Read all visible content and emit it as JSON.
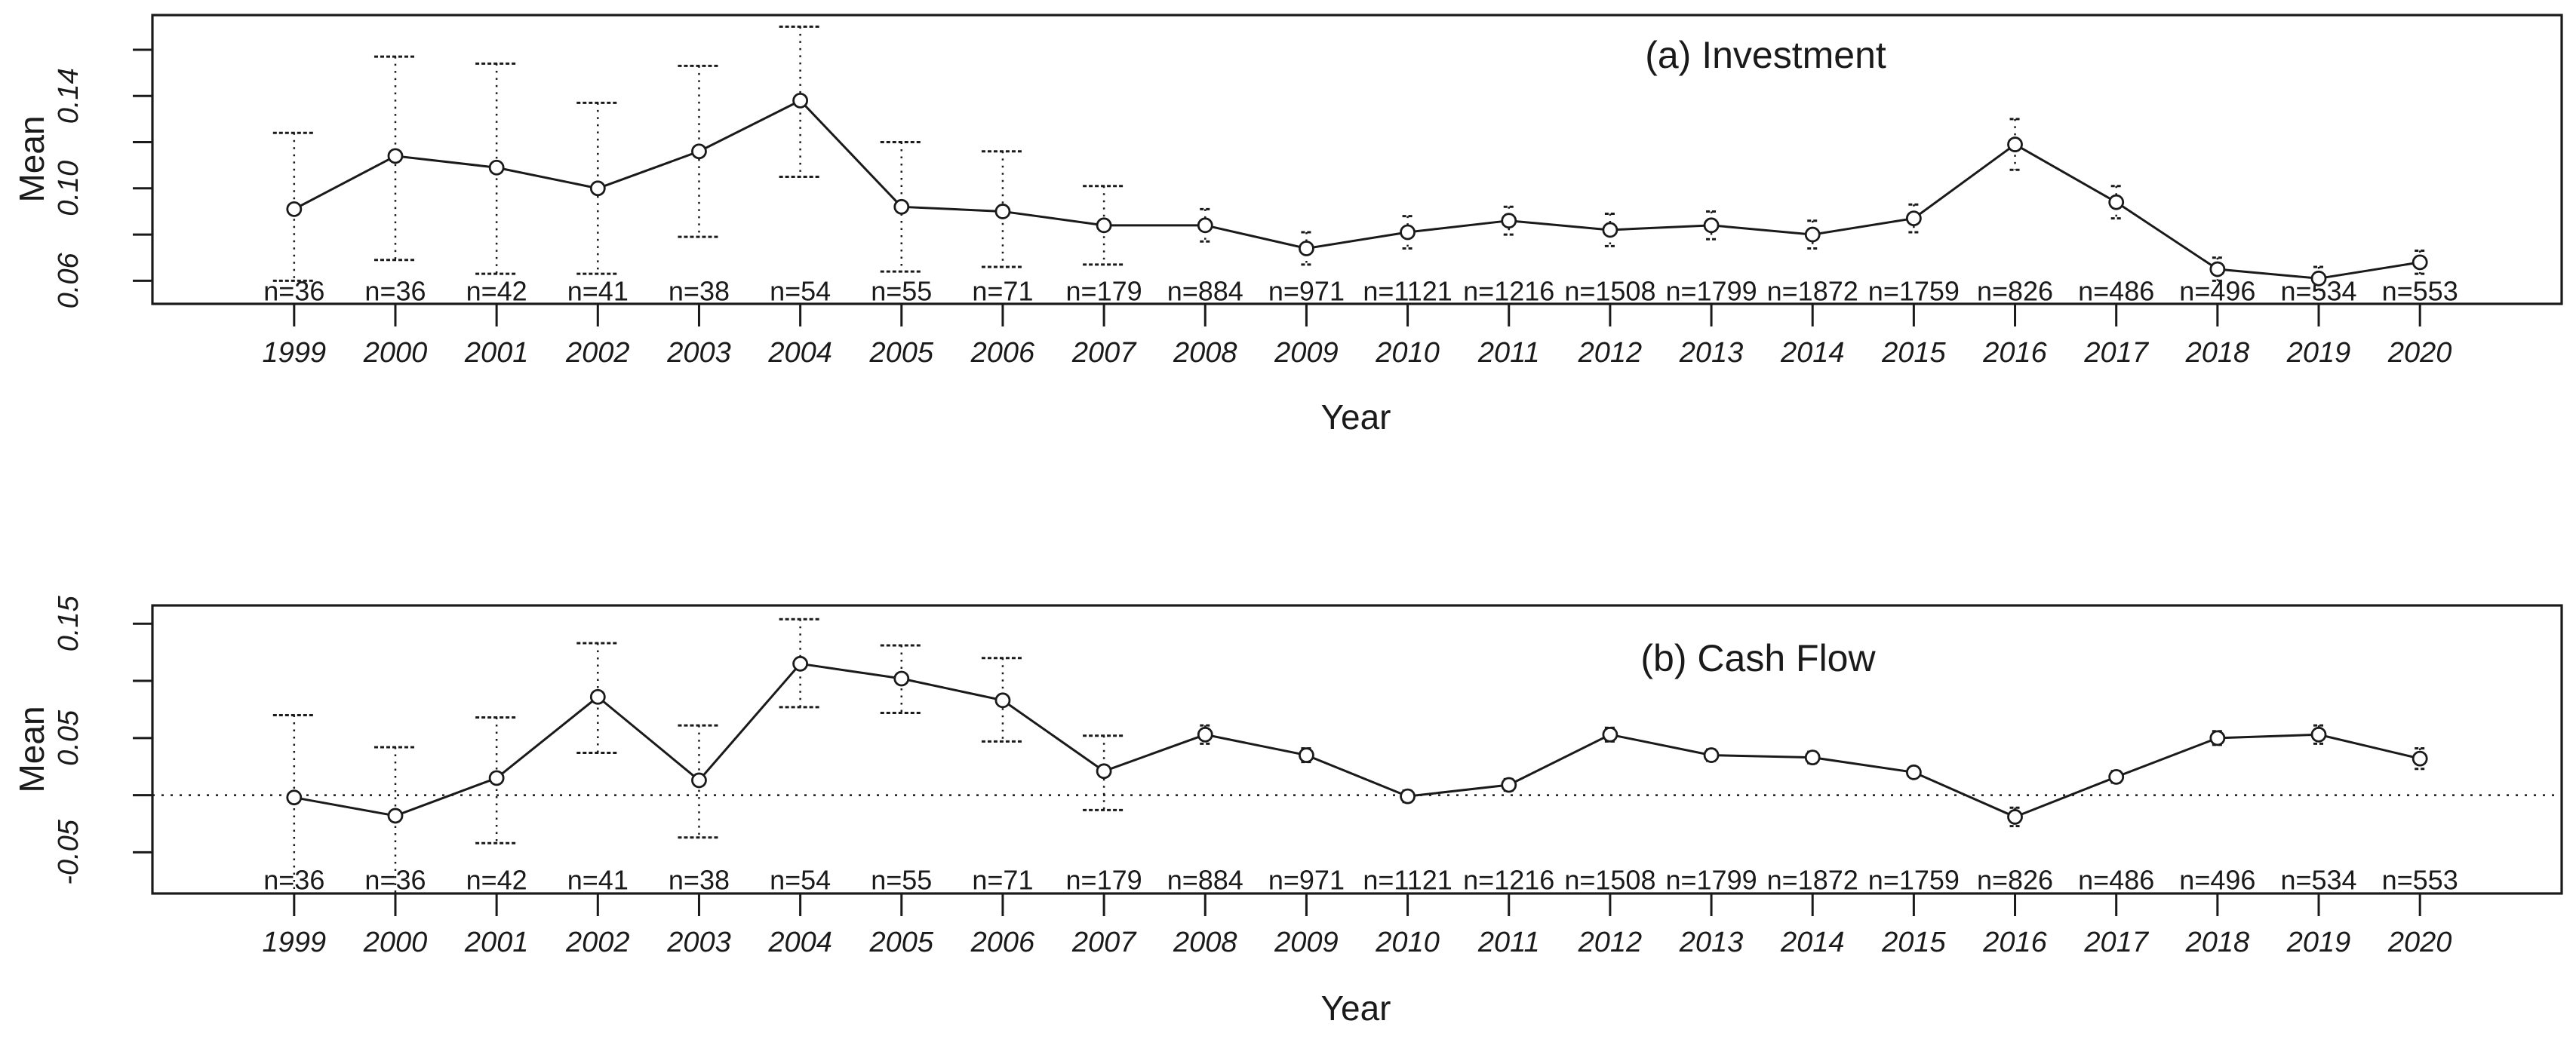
{
  "colors": {
    "ink": "#1a1a1a",
    "background": "#ffffff"
  },
  "chart_data": [
    {
      "id": "investment",
      "type": "line",
      "title": "(a) Investment",
      "ylabel": "Mean",
      "xlabel": "Year",
      "legend": "none",
      "grid": false,
      "xlim": [
        1997.6,
        2021.4
      ],
      "ylim": [
        0.05,
        0.175
      ],
      "years": [
        1999,
        2000,
        2001,
        2002,
        2003,
        2004,
        2005,
        2006,
        2007,
        2008,
        2009,
        2010,
        2011,
        2012,
        2013,
        2014,
        2015,
        2016,
        2017,
        2018,
        2019,
        2020
      ],
      "n_labels": [
        "n=36",
        "n=36",
        "n=42",
        "n=41",
        "n=38",
        "n=54",
        "n=55",
        "n=71",
        "n=179",
        "n=884",
        "n=971",
        "n=1121",
        "n=1216",
        "n=1508",
        "n=1799",
        "n=1872",
        "n=1759",
        "n=826",
        "n=486",
        "n=496",
        "n=534",
        "n=553"
      ],
      "mean": [
        0.091,
        0.114,
        0.109,
        0.1,
        0.116,
        0.138,
        0.092,
        0.09,
        0.084,
        0.084,
        0.074,
        0.081,
        0.086,
        0.082,
        0.084,
        0.08,
        0.087,
        0.119,
        0.094,
        0.065,
        0.061,
        0.068
      ],
      "err_lo": [
        0.06,
        0.069,
        0.063,
        0.063,
        0.079,
        0.105,
        0.064,
        0.066,
        0.067,
        0.077,
        0.067,
        0.074,
        0.08,
        0.075,
        0.078,
        0.074,
        0.081,
        0.108,
        0.087,
        0.06,
        0.056,
        0.063
      ],
      "err_hi": [
        0.124,
        0.157,
        0.154,
        0.137,
        0.153,
        0.17,
        0.12,
        0.116,
        0.101,
        0.091,
        0.081,
        0.088,
        0.092,
        0.089,
        0.09,
        0.086,
        0.093,
        0.13,
        0.101,
        0.07,
        0.066,
        0.073
      ],
      "yticks": [
        {
          "v": 0.06,
          "label": "0.06"
        },
        {
          "v": 0.08,
          "label": ""
        },
        {
          "v": 0.1,
          "label": "0.10"
        },
        {
          "v": 0.12,
          "label": ""
        },
        {
          "v": 0.14,
          "label": "0.14"
        },
        {
          "v": 0.16,
          "label": ""
        }
      ],
      "zero_line": false
    },
    {
      "id": "cash-flow",
      "type": "line",
      "title": "(b) Cash Flow",
      "ylabel": "Mean",
      "xlabel": "Year",
      "legend": "none",
      "grid": false,
      "xlim": [
        1997.6,
        2021.4
      ],
      "ylim": [
        -0.086,
        0.166
      ],
      "years": [
        1999,
        2000,
        2001,
        2002,
        2003,
        2004,
        2005,
        2006,
        2007,
        2008,
        2009,
        2010,
        2011,
        2012,
        2013,
        2014,
        2015,
        2016,
        2017,
        2018,
        2019,
        2020
      ],
      "n_labels": [
        "n=36",
        "n=36",
        "n=42",
        "n=41",
        "n=38",
        "n=54",
        "n=55",
        "n=71",
        "n=179",
        "n=884",
        "n=971",
        "n=1121",
        "n=1216",
        "n=1508",
        "n=1799",
        "n=1872",
        "n=1759",
        "n=826",
        "n=486",
        "n=496",
        "n=534",
        "n=553"
      ],
      "mean": [
        -0.002,
        -0.018,
        0.015,
        0.086,
        0.013,
        0.115,
        0.102,
        0.083,
        0.021,
        0.053,
        0.035,
        -0.001,
        0.009,
        0.053,
        0.035,
        0.033,
        0.02,
        -0.019,
        0.016,
        0.05,
        0.053,
        0.032
      ],
      "err_lo": [
        -0.085,
        -0.085,
        -0.042,
        0.037,
        -0.037,
        0.077,
        0.072,
        0.047,
        -0.013,
        0.045,
        0.029,
        -0.006,
        0.004,
        0.047,
        0.03,
        0.028,
        0.016,
        -0.027,
        0.011,
        0.044,
        0.045,
        0.023
      ],
      "err_hi": [
        0.07,
        0.042,
        0.068,
        0.133,
        0.061,
        0.154,
        0.131,
        0.12,
        0.052,
        0.061,
        0.041,
        0.004,
        0.014,
        0.059,
        0.04,
        0.038,
        0.024,
        -0.011,
        0.021,
        0.056,
        0.061,
        0.041
      ],
      "yticks": [
        {
          "v": -0.05,
          "label": "-0.05"
        },
        {
          "v": 0.0,
          "label": ""
        },
        {
          "v": 0.05,
          "label": "0.05"
        },
        {
          "v": 0.1,
          "label": ""
        },
        {
          "v": 0.15,
          "label": "0.15"
        }
      ],
      "zero_line": true
    }
  ]
}
